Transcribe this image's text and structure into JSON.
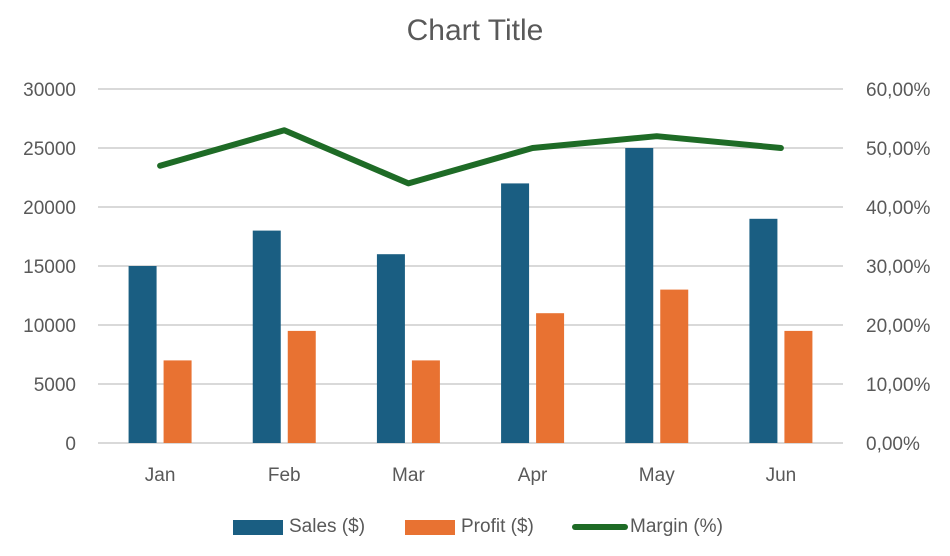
{
  "chart_data": {
    "type": "bar+line",
    "title": "Chart Title",
    "categories": [
      "Jan",
      "Feb",
      "Mar",
      "Apr",
      "May",
      "Jun"
    ],
    "series": [
      {
        "name": "Sales ($)",
        "type": "bar",
        "axis": "left",
        "color": "#1a5e82",
        "values": [
          15000,
          18000,
          16000,
          22000,
          25000,
          19000
        ]
      },
      {
        "name": "Profit ($)",
        "type": "bar",
        "axis": "left",
        "color": "#e87232",
        "values": [
          7000,
          9500,
          7000,
          11000,
          13000,
          9500
        ]
      },
      {
        "name": "Margin (%)",
        "type": "line",
        "axis": "right",
        "color": "#1e6b26",
        "values": [
          0.47,
          0.53,
          0.44,
          0.5,
          0.52,
          0.5
        ]
      }
    ],
    "left_axis": {
      "ylim": [
        0,
        30000
      ],
      "ticks": [
        "0",
        "5000",
        "10000",
        "15000",
        "20000",
        "25000",
        "30000"
      ]
    },
    "right_axis": {
      "ylim": [
        0,
        0.6
      ],
      "ticks": [
        "0,00%",
        "10,00%",
        "20,00%",
        "30,00%",
        "40,00%",
        "50,00%",
        "60,00%"
      ]
    },
    "xlabel": "",
    "ylabel": "",
    "grid": true,
    "legend_position": "bottom"
  },
  "legend": {
    "sales": "Sales ($)",
    "profit": "Profit ($)",
    "margin": "Margin (%)"
  }
}
